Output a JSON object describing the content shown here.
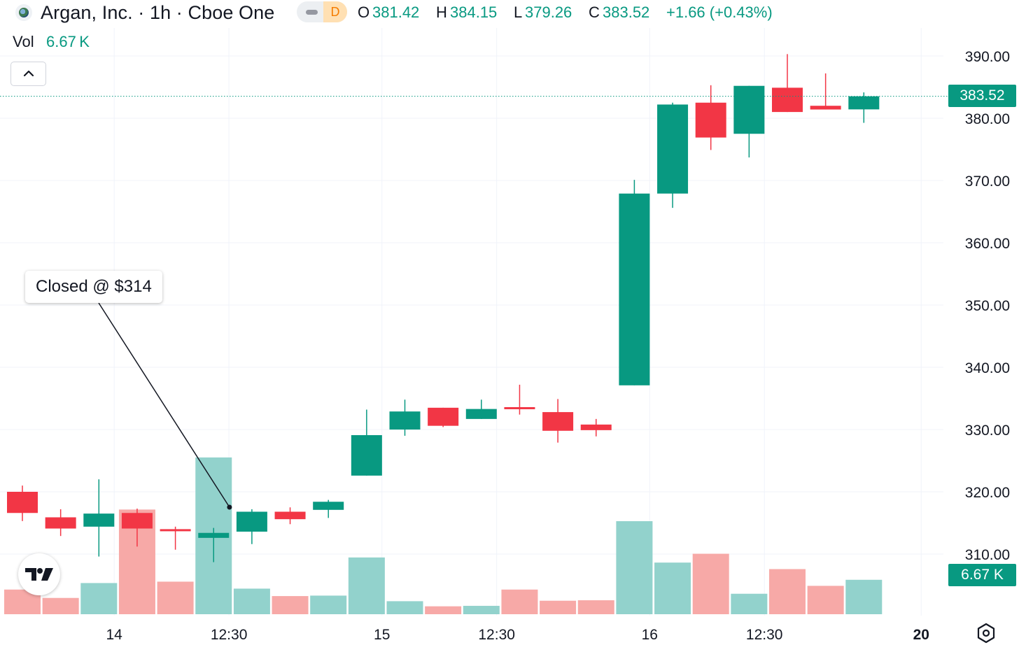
{
  "header": {
    "title": "Argan, Inc. · 1h · Cboe One",
    "pill_label": "D",
    "ohlc": {
      "o_label": "O",
      "o_value": "381.42",
      "h_label": "H",
      "h_value": "384.15",
      "l_label": "L",
      "l_value": "379.26",
      "c_label": "C",
      "c_value": "383.52",
      "change": "+1.66 (+0.43%)"
    },
    "volume_label": "Vol",
    "volume_value": "6.67 K"
  },
  "price_badge": "383.52",
  "volume_badge": "6.67 K",
  "annotation": "Closed @ $314",
  "colors": {
    "up": "#089981",
    "down": "#f23645",
    "up_volume": "#92d2cc",
    "down_volume": "#f7a9a7",
    "grid": "#f0f3fa"
  },
  "icons": [
    "collapse-chevron-icon",
    "tradingview-logo-icon",
    "settings-hexagon-icon"
  ],
  "chart_data": {
    "type": "candlestick",
    "title": "Argan, Inc. · 1h · Cboe One",
    "y_axis": {
      "min": 305,
      "max": 392,
      "ticks": [
        "310.00",
        "320.00",
        "330.00",
        "340.00",
        "350.00",
        "360.00",
        "370.00",
        "380.00",
        "390.00"
      ]
    },
    "x_tick_labels": [
      {
        "label": "14",
        "bar": 2.4,
        "bold": false
      },
      {
        "label": "12:30",
        "bar": 5.4,
        "bold": false
      },
      {
        "label": "15",
        "bar": 9.4,
        "bold": false
      },
      {
        "label": "12:30",
        "bar": 12.4,
        "bold": false
      },
      {
        "label": "16",
        "bar": 16.4,
        "bold": false
      },
      {
        "label": "12:30",
        "bar": 19.4,
        "bold": false
      },
      {
        "label": "20",
        "bar": 23.5,
        "bold": true
      }
    ],
    "last_price": 383.52,
    "candles": [
      {
        "o": 320.0,
        "h": 321.0,
        "l": 315.3,
        "c": 316.6,
        "v": 0.53
      },
      {
        "o": 315.9,
        "h": 317.2,
        "l": 312.9,
        "c": 314.1,
        "v": 0.35
      },
      {
        "o": 314.4,
        "h": 322.0,
        "l": 309.6,
        "c": 316.5,
        "v": 0.67
      },
      {
        "o": 316.6,
        "h": 317.3,
        "l": 311.2,
        "c": 314.1,
        "v": 2.25
      },
      {
        "o": 314.0,
        "h": 314.4,
        "l": 310.7,
        "c": 313.9,
        "v": 0.7
      },
      {
        "o": 312.6,
        "h": 314.2,
        "l": 308.7,
        "c": 313.4,
        "v": 3.37
      },
      {
        "o": 313.6,
        "h": 317.2,
        "l": 311.6,
        "c": 316.8,
        "v": 0.55
      },
      {
        "o": 316.8,
        "h": 317.5,
        "l": 314.8,
        "c": 315.6,
        "v": 0.39
      },
      {
        "o": 317.1,
        "h": 318.7,
        "l": 315.8,
        "c": 318.4,
        "v": 0.4
      },
      {
        "o": 322.6,
        "h": 333.2,
        "l": 322.6,
        "c": 329.1,
        "v": 1.22
      },
      {
        "o": 330.0,
        "h": 334.8,
        "l": 329.0,
        "c": 332.9,
        "v": 0.28
      },
      {
        "o": 333.5,
        "h": 333.5,
        "l": 330.4,
        "c": 330.6,
        "v": 0.17
      },
      {
        "o": 331.7,
        "h": 334.8,
        "l": 331.7,
        "c": 333.3,
        "v": 0.18
      },
      {
        "o": 333.6,
        "h": 337.2,
        "l": 332.4,
        "c": 333.3,
        "v": 0.53
      },
      {
        "o": 332.8,
        "h": 334.9,
        "l": 327.9,
        "c": 329.8,
        "v": 0.29
      },
      {
        "o": 330.8,
        "h": 331.7,
        "l": 328.9,
        "c": 329.9,
        "v": 0.3
      },
      {
        "o": 337.1,
        "h": 370.1,
        "l": 337.1,
        "c": 367.9,
        "v": 2.0
      },
      {
        "o": 367.9,
        "h": 382.5,
        "l": 365.6,
        "c": 382.2,
        "v": 1.11
      },
      {
        "o": 382.5,
        "h": 385.3,
        "l": 374.9,
        "c": 376.9,
        "v": 1.3
      },
      {
        "o": 377.5,
        "h": 385.2,
        "l": 373.7,
        "c": 385.2,
        "v": 0.44
      },
      {
        "o": 384.9,
        "h": 390.3,
        "l": 381.0,
        "c": 381.0,
        "v": 0.97
      },
      {
        "o": 382.0,
        "h": 387.2,
        "l": 381.4,
        "c": 381.4,
        "v": 0.61
      },
      {
        "o": 381.42,
        "h": 384.15,
        "l": 379.26,
        "c": 383.52,
        "v": 0.74
      }
    ],
    "annotation": {
      "text": "Closed @ $314",
      "candle_index": 6,
      "price": 317.3
    }
  }
}
